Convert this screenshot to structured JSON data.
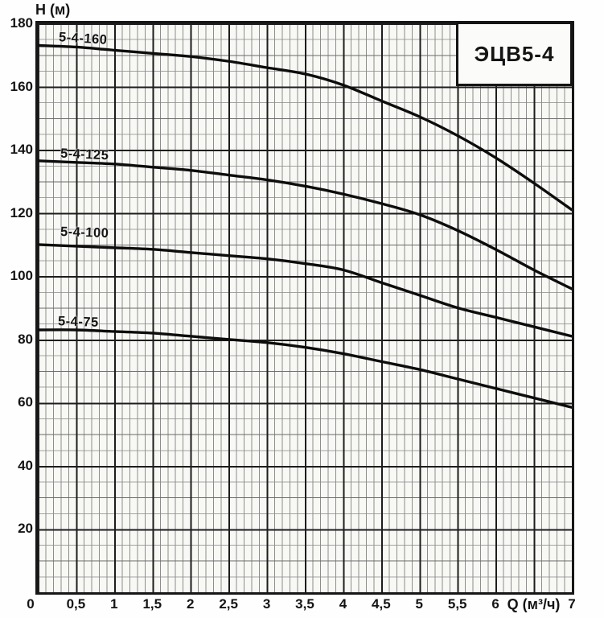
{
  "chart_data": {
    "type": "line",
    "title": "ЭЦВ5-4",
    "xlabel": "Q (м³/ч)",
    "ylabel": "H (м)",
    "xlim": [
      0,
      7
    ],
    "ylim": [
      0,
      180
    ],
    "legend_position": "top-right",
    "grid": {
      "x_minor_step": 0.1,
      "x_major_step": 0.5,
      "y_minor_step": 5,
      "y_medium_step": 10,
      "y_major_step": 20
    },
    "x": [
      0,
      0.5,
      1,
      1.5,
      2,
      2.5,
      3,
      3.5,
      4,
      4.5,
      5,
      5.5,
      6,
      6.5,
      7
    ],
    "series": [
      {
        "name": "5-4-160",
        "values": [
          173,
          172.5,
          171.5,
          170.5,
          169.5,
          168,
          166,
          164,
          160.5,
          155.5,
          150.5,
          144.5,
          137.5,
          129.5,
          121
        ]
      },
      {
        "name": "5-4-125",
        "values": [
          136.5,
          136,
          135.5,
          134.5,
          133.5,
          132,
          130.5,
          128.5,
          126,
          123,
          119.5,
          114.5,
          108.5,
          102,
          96
        ]
      },
      {
        "name": "5-4-100",
        "values": [
          110,
          109.5,
          109,
          108.5,
          107.5,
          106.5,
          105.5,
          104,
          102,
          98,
          94,
          90,
          87,
          84,
          81
        ]
      },
      {
        "name": "5-4-75",
        "values": [
          83,
          83,
          82.5,
          82,
          81,
          80,
          79,
          77.5,
          75.5,
          73,
          70.5,
          67.5,
          64.5,
          61.5,
          58.5
        ]
      }
    ],
    "x_ticks": [
      {
        "q": 0,
        "label": "0",
        "dx": -9
      },
      {
        "q": 0.5,
        "label": "0,5"
      },
      {
        "q": 1,
        "label": "1"
      },
      {
        "q": 1.5,
        "label": "1,5"
      },
      {
        "q": 2,
        "label": "2"
      },
      {
        "q": 2.5,
        "label": "2,5"
      },
      {
        "q": 3,
        "label": "3"
      },
      {
        "q": 3.5,
        "label": "3,5"
      },
      {
        "q": 4,
        "label": "4"
      },
      {
        "q": 4.5,
        "label": "4,5"
      },
      {
        "q": 5,
        "label": "5"
      },
      {
        "q": 5.5,
        "label": "5,5"
      },
      {
        "q": 6,
        "label": "6"
      },
      {
        "q": 7,
        "label": "7"
      }
    ],
    "xlabel_q": 6.5,
    "y_ticks": [
      {
        "h": 180,
        "label": "180"
      },
      {
        "h": 160,
        "label": "160"
      },
      {
        "h": 140,
        "label": "140"
      },
      {
        "h": 120,
        "label": "120"
      },
      {
        "h": 100,
        "label": "100"
      },
      {
        "h": 80,
        "label": "80"
      },
      {
        "h": 60,
        "label": "60"
      },
      {
        "h": 40,
        "label": "40"
      },
      {
        "h": 20,
        "label": "20"
      }
    ]
  },
  "colors": {
    "curve": "#0d0d0d",
    "grid_major": "#1d1d1d",
    "grid_medium": "#6a6a6a",
    "grid_minor": "#a3a3a3",
    "paper": "#f8f8f5",
    "ink": "#141414"
  }
}
